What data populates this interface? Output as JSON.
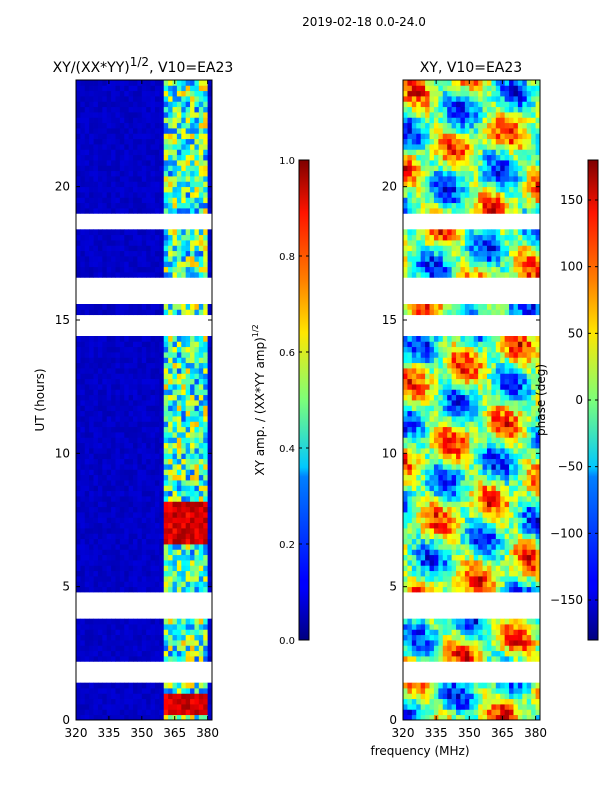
{
  "figure": {
    "suptitle": "2019-02-18 0.0-24.0",
    "xlabel_shared": "frequency (MHz)"
  },
  "chart_data": [
    {
      "type": "heatmap",
      "panel": "left",
      "title": "XY/(XX*YY)",
      "title_exponent": "1/2",
      "title_suffix": ", V10=EA23",
      "ylabel": "UT (hours)",
      "xlim": [
        320,
        382
      ],
      "ylim": [
        0,
        24
      ],
      "xticks": [
        "320",
        "335",
        "350",
        "365",
        "380"
      ],
      "yticks": [
        "0",
        "5",
        "10",
        "15",
        "20"
      ],
      "colorbar": {
        "label": "XY amp. / (XX*YY amp)",
        "label_exponent": "1/2",
        "range": [
          0.0,
          1.0
        ],
        "ticks": [
          "0.0",
          "0.2",
          "0.4",
          "0.6",
          "0.8",
          "1.0"
        ],
        "colormap": "jet"
      },
      "data_gaps_ut": [
        [
          1.0,
          1.1
        ],
        [
          1.5,
          2.2
        ],
        [
          3.8,
          4.9
        ],
        [
          6.6,
          6.7
        ],
        [
          14.5,
          15.3
        ],
        [
          15.6,
          16.6
        ],
        [
          18.4,
          19.0
        ],
        [
          22.0,
          22.1
        ],
        [
          23.6,
          23.7
        ]
      ],
      "bright_band_mhz": [
        360,
        380
      ],
      "low_band_value": 0.05,
      "bright_band_value": 0.45
    },
    {
      "type": "heatmap",
      "panel": "right",
      "title": "XY, V10=EA23",
      "ylabel": "",
      "xlim": [
        320,
        382
      ],
      "ylim": [
        0,
        24
      ],
      "xticks": [
        "320",
        "335",
        "350",
        "365",
        "380"
      ],
      "yticks": [
        "0",
        "5",
        "10",
        "15",
        "20"
      ],
      "colorbar": {
        "label": "phase (deg)",
        "range": [
          -180,
          180
        ],
        "ticks": [
          "-150",
          "-100",
          "-50",
          "0",
          "50",
          "100",
          "150"
        ],
        "colormap": "jet"
      },
      "data_gaps_ut": [
        [
          1.0,
          1.1
        ],
        [
          1.5,
          2.2
        ],
        [
          3.8,
          4.9
        ],
        [
          6.6,
          6.7
        ],
        [
          14.5,
          15.3
        ],
        [
          15.6,
          16.6
        ],
        [
          18.4,
          19.0
        ],
        [
          22.0,
          22.1
        ],
        [
          23.6,
          23.7
        ]
      ]
    }
  ]
}
